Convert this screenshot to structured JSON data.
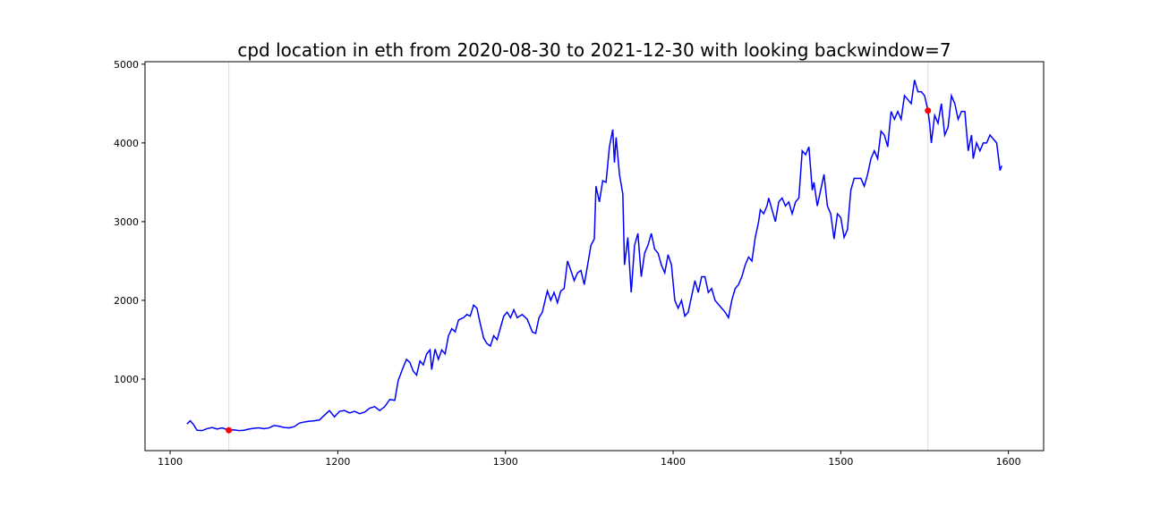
{
  "chart_data": {
    "type": "line",
    "title": "cpd location in eth from 2020-08-30 to 2021-12-30 with looking backwindow=7",
    "xlim": [
      1085,
      1621
    ],
    "ylim": [
      91,
      5032
    ],
    "xticks": [
      1100,
      1200,
      1300,
      1400,
      1500,
      1600
    ],
    "yticks": [
      1000,
      2000,
      3000,
      4000,
      5000
    ],
    "grid": false,
    "series": [
      {
        "color": "#0000ff",
        "x": [
          1110,
          1112,
          1114,
          1116,
          1119,
          1122,
          1125,
          1128,
          1131,
          1135,
          1138,
          1141,
          1144,
          1147,
          1150,
          1153,
          1156,
          1159,
          1162,
          1165,
          1168,
          1171,
          1174,
          1177,
          1180,
          1183,
          1186,
          1189,
          1192,
          1195,
          1198,
          1201,
          1204,
          1207,
          1210,
          1213,
          1216,
          1219,
          1222,
          1225,
          1228,
          1231,
          1234,
          1236,
          1239,
          1241,
          1243,
          1245,
          1247,
          1249,
          1251,
          1253,
          1255,
          1256,
          1258,
          1260,
          1262,
          1264,
          1266,
          1268,
          1270,
          1272,
          1275,
          1277,
          1279,
          1281,
          1283,
          1285,
          1287,
          1289,
          1291,
          1293,
          1295,
          1297,
          1299,
          1301,
          1303,
          1305,
          1307,
          1310,
          1313,
          1316,
          1318,
          1320,
          1322,
          1325,
          1327,
          1329,
          1331,
          1333,
          1335,
          1337,
          1339,
          1341,
          1343,
          1345,
          1347,
          1349,
          1351,
          1353,
          1354,
          1356,
          1358,
          1360,
          1362,
          1364,
          1365,
          1366,
          1368,
          1370,
          1371,
          1373,
          1375,
          1377,
          1379,
          1381,
          1383,
          1385,
          1387,
          1389,
          1391,
          1393,
          1395,
          1397,
          1399,
          1401,
          1403,
          1405,
          1407,
          1409,
          1411,
          1413,
          1415,
          1417,
          1419,
          1421,
          1423,
          1425,
          1427,
          1429,
          1431,
          1433,
          1435,
          1437,
          1439,
          1441,
          1443,
          1445,
          1447,
          1449,
          1451,
          1452,
          1454,
          1456,
          1457,
          1459,
          1461,
          1463,
          1465,
          1467,
          1469,
          1471,
          1473,
          1475,
          1477,
          1479,
          1481,
          1483,
          1484,
          1486,
          1488,
          1490,
          1492,
          1494,
          1496,
          1498,
          1500,
          1502,
          1504,
          1506,
          1508,
          1510,
          1512,
          1514,
          1516,
          1518,
          1520,
          1522,
          1524,
          1526,
          1528,
          1530,
          1532,
          1534,
          1536,
          1538,
          1540,
          1542,
          1544,
          1546,
          1548,
          1550,
          1552,
          1553,
          1554,
          1556,
          1558,
          1560,
          1562,
          1564,
          1566,
          1568,
          1570,
          1572,
          1574,
          1576,
          1578,
          1579,
          1581,
          1583,
          1585,
          1587,
          1589,
          1591,
          1593,
          1595,
          1596
        ],
        "values": [
          430,
          470,
          420,
          350,
          345,
          370,
          385,
          365,
          380,
          350,
          355,
          345,
          350,
          365,
          375,
          380,
          370,
          380,
          410,
          400,
          385,
          380,
          395,
          440,
          455,
          465,
          470,
          480,
          540,
          600,
          520,
          590,
          600,
          570,
          590,
          560,
          580,
          630,
          650,
          600,
          650,
          740,
          730,
          980,
          1150,
          1250,
          1210,
          1100,
          1050,
          1230,
          1180,
          1320,
          1370,
          1120,
          1380,
          1250,
          1370,
          1320,
          1550,
          1640,
          1600,
          1750,
          1780,
          1820,
          1800,
          1940,
          1900,
          1700,
          1520,
          1450,
          1420,
          1550,
          1500,
          1650,
          1800,
          1850,
          1780,
          1880,
          1780,
          1820,
          1760,
          1600,
          1580,
          1780,
          1850,
          2120,
          2000,
          2100,
          1970,
          2120,
          2150,
          2500,
          2380,
          2250,
          2350,
          2380,
          2200,
          2450,
          2700,
          2780,
          3450,
          3250,
          3520,
          3500,
          3950,
          4170,
          3750,
          4070,
          3600,
          3350,
          2450,
          2800,
          2100,
          2700,
          2850,
          2300,
          2600,
          2700,
          2850,
          2650,
          2600,
          2450,
          2350,
          2580,
          2450,
          2000,
          1900,
          2000,
          1800,
          1850,
          2050,
          2250,
          2100,
          2300,
          2300,
          2100,
          2150,
          2000,
          1950,
          1900,
          1850,
          1780,
          2000,
          2150,
          2200,
          2300,
          2450,
          2550,
          2500,
          2800,
          3000,
          3150,
          3100,
          3200,
          3300,
          3150,
          3000,
          3250,
          3300,
          3200,
          3250,
          3100,
          3250,
          3300,
          3900,
          3850,
          3950,
          3400,
          3500,
          3200,
          3400,
          3600,
          3200,
          3100,
          2780,
          3100,
          3050,
          2800,
          2900,
          3400,
          3550,
          3550,
          3550,
          3450,
          3600,
          3800,
          3900,
          3800,
          4150,
          4100,
          3950,
          4400,
          4300,
          4400,
          4300,
          4600,
          4550,
          4500,
          4800,
          4650,
          4650,
          4600,
          4410,
          4250,
          4000,
          4350,
          4250,
          4500,
          4100,
          4200,
          4600,
          4500,
          4300,
          4400,
          4400,
          3900,
          4100,
          3800,
          4000,
          3900,
          4000,
          4000,
          4100,
          4050,
          4000,
          3650,
          3710
        ]
      }
    ],
    "markers": {
      "color": "#ff0000",
      "line_color": "#dddddd",
      "x": [
        1135,
        1552
      ],
      "values": [
        350,
        4410
      ]
    }
  }
}
